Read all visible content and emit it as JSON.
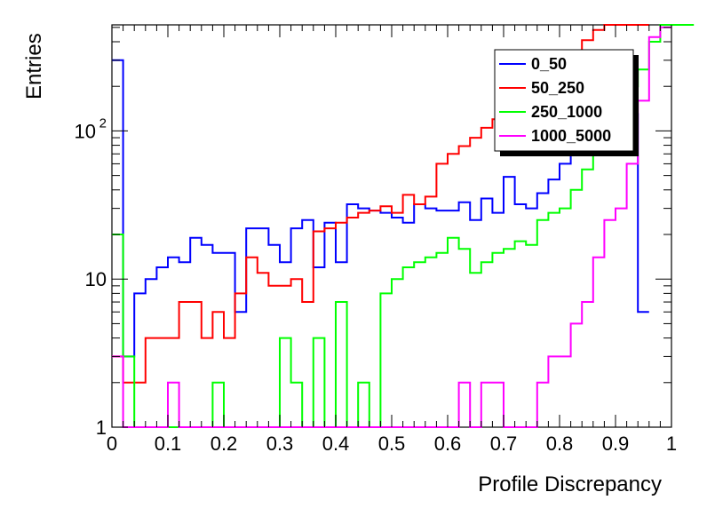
{
  "chart_data": {
    "type": "line",
    "xlabel": "Profile Discrepancy",
    "ylabel": "Entries",
    "xlim": [
      0,
      1
    ],
    "ylim": [
      1,
      520
    ],
    "log_y": true,
    "grid": false,
    "legend_position": "top-right",
    "bin_width": 0.02,
    "x_ticks": [
      {
        "value": 0,
        "label": "0"
      },
      {
        "value": 0.1,
        "label": "0.1"
      },
      {
        "value": 0.2,
        "label": "0.2"
      },
      {
        "value": 0.3,
        "label": "0.3"
      },
      {
        "value": 0.4,
        "label": "0.4"
      },
      {
        "value": 0.5,
        "label": "0.5"
      },
      {
        "value": 0.6,
        "label": "0.6"
      },
      {
        "value": 0.7,
        "label": "0.7"
      },
      {
        "value": 0.8,
        "label": "0.8"
      },
      {
        "value": 0.9,
        "label": "0.9"
      },
      {
        "value": 1,
        "label": "1"
      }
    ],
    "y_ticks": [
      {
        "value": 1,
        "label": "1"
      },
      {
        "value": 10,
        "label": "10"
      },
      {
        "value": 100,
        "label": "10",
        "exponent": "2"
      }
    ],
    "series": [
      {
        "name": "0_50",
        "color": "#0000ff",
        "values": [
          300,
          3,
          8,
          10,
          12,
          14,
          13,
          19,
          17,
          15,
          15,
          6,
          22,
          22,
          17,
          13,
          22,
          25,
          12,
          24,
          13,
          32,
          30,
          29,
          28,
          26,
          24,
          32,
          30,
          29,
          29,
          33,
          25,
          35,
          28,
          49,
          32,
          30,
          38,
          47,
          60,
          86,
          120,
          160,
          185,
          170,
          130,
          6
        ]
      },
      {
        "name": "50_250",
        "color": "#ff0000",
        "values": [
          3,
          2,
          2,
          4,
          4,
          4,
          7,
          7,
          4,
          6,
          4,
          8,
          14,
          11,
          9,
          9,
          10,
          7,
          21,
          22,
          24,
          26,
          28,
          29,
          31,
          28,
          37,
          32,
          36,
          60,
          70,
          79,
          90,
          105,
          120,
          140,
          160,
          200,
          220,
          245,
          275,
          350,
          410,
          480,
          520,
          520,
          520,
          520
        ]
      },
      {
        "name": "250_1000",
        "color": "#00ff00",
        "values": [
          20,
          3,
          1,
          1,
          1,
          1,
          1,
          1,
          1,
          2,
          1,
          1,
          1,
          1,
          1,
          4,
          2,
          1,
          4,
          1,
          7,
          1,
          2,
          1,
          8,
          10,
          12,
          13,
          14,
          15,
          19,
          16,
          11,
          13,
          15,
          16,
          18,
          17,
          25,
          28,
          30,
          40,
          55,
          75,
          110,
          140,
          200,
          260,
          400,
          520,
          520,
          520,
          520
        ]
      },
      {
        "name": "1000_5000",
        "color": "#ff00ff",
        "values": [
          3,
          1,
          1,
          1,
          1,
          2,
          1,
          1,
          1,
          1,
          1,
          1,
          1,
          1,
          1,
          1,
          1,
          1,
          1,
          1,
          1,
          1,
          1,
          1,
          1,
          1,
          1,
          1,
          1,
          1,
          1,
          2,
          1,
          2,
          2,
          1,
          1,
          1,
          2,
          3,
          3,
          5,
          7,
          14,
          25,
          30,
          60,
          160,
          430,
          500
        ]
      }
    ]
  }
}
